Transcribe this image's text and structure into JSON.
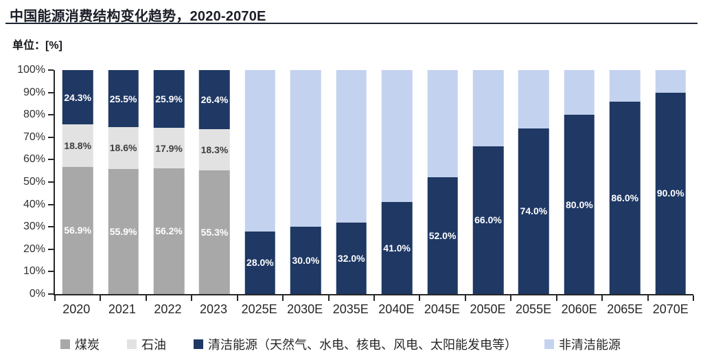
{
  "header": {
    "title": "中国能源消费结构变化趋势，2020-2070E",
    "unit_label": "单位：[%]"
  },
  "colors": {
    "coal": "#a8a8a8",
    "oil": "#e2e2e2",
    "clean_energy": "#1f3864",
    "non_clean_energy": "#c3d2ee",
    "axis": "#262626",
    "title_rule": "#1c2333"
  },
  "chart_data": {
    "type": "bar",
    "stacked": true,
    "title": "中国能源消费结构变化趋势，2020-2070E",
    "unit": "%",
    "grid": false,
    "legend_position": "bottom",
    "ylim": [
      0,
      100
    ],
    "y_tick_step": 10,
    "y_tick_labels": [
      "0%",
      "10%",
      "20%",
      "30%",
      "40%",
      "50%",
      "60%",
      "70%",
      "80%",
      "90%",
      "100%"
    ],
    "categories": [
      "2020",
      "2021",
      "2022",
      "2023",
      "2025E",
      "2030E",
      "2035E",
      "2040E",
      "2045E",
      "2050E",
      "2055E",
      "2060E",
      "2065E",
      "2070E"
    ],
    "series": [
      {
        "name": "煤炭",
        "color": "#a8a8a8",
        "label_color": "#ffffff",
        "show_labels": true,
        "values": [
          56.9,
          55.9,
          56.2,
          55.3,
          null,
          null,
          null,
          null,
          null,
          null,
          null,
          null,
          null,
          null
        ]
      },
      {
        "name": "石油",
        "color": "#e2e2e2",
        "label_color": "#3f3f3f",
        "show_labels": true,
        "values": [
          18.8,
          18.6,
          17.9,
          18.3,
          null,
          null,
          null,
          null,
          null,
          null,
          null,
          null,
          null,
          null
        ]
      },
      {
        "name": "清洁能源（天然气、水电、核电、风电、太阳能发电等）",
        "color": "#1f3864",
        "label_color": "#ffffff",
        "show_labels": true,
        "values": [
          24.3,
          25.5,
          25.9,
          26.4,
          28.0,
          30.0,
          32.0,
          41.0,
          52.0,
          66.0,
          74.0,
          80.0,
          86.0,
          90.0
        ]
      },
      {
        "name": "非清洁能源",
        "color": "#c3d2ee",
        "label_color": null,
        "show_labels": false,
        "values": [
          null,
          null,
          null,
          null,
          72.0,
          70.0,
          68.0,
          59.0,
          48.0,
          34.0,
          26.0,
          20.0,
          14.0,
          10.0
        ]
      }
    ]
  }
}
